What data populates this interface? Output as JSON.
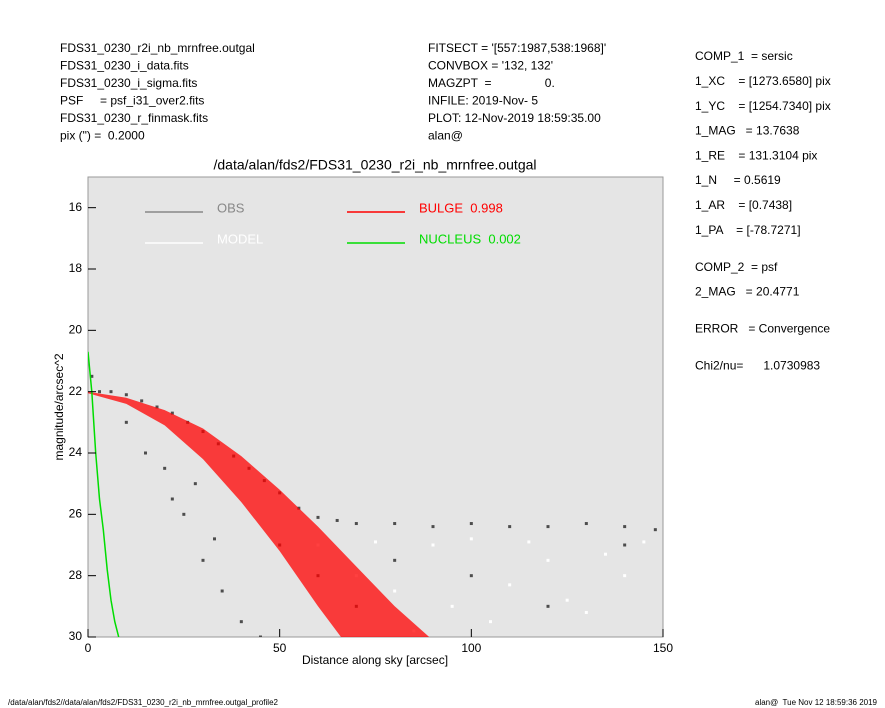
{
  "chart_data": {
    "type": "scatter",
    "title": "/data/alan/fds2/FDS31_0230_r2i_nb_mrnfree.outgal",
    "x_label": "Distance along sky [arcsec]",
    "y_label": "magnitude/arcsec^2",
    "header_left": [
      "FDS31_0230_r2i_nb_mrnfree.outgal",
      "FDS31_0230_i_data.fits",
      "FDS31_0230_i_sigma.fits",
      "PSF     = psf_i31_over2.fits",
      "FDS31_0230_r_finmask.fits",
      "pix (\") =  0.2000"
    ],
    "header_middle": [
      "FITSECT = '[557:1987,538:1968]'",
      "CONVBOX = '132, 132'",
      "MAGZPT  =                0.",
      "INFILE: 2019-Nov- 5",
      "PLOT: 12-Nov-2019 18:59:35.00",
      "alan@"
    ],
    "parameters": [
      "COMP_1  = sersic",
      "1_XC    = [1273.6580] pix",
      "1_YC    = [1254.7340] pix",
      "1_MAG   = 13.7638",
      "1_RE    = 131.3104 pix",
      "1_N     = 0.5619",
      "1_AR    = [0.7438]",
      "1_PA    = [-78.7271]",
      "COMP_2  = psf",
      "2_MAG   = 20.4771",
      "ERROR   = Convergence",
      "Chi2/nu=      1.0730983"
    ],
    "footer_left": "/data/alan/fds2//data/alan/fds2/FDS31_0230_r2i_nb_mrnfree.outgal_profile2",
    "footer_right": "alan@  Tue Nov 12 18:59:36 2019",
    "xlim": [
      0,
      150
    ],
    "xticks": [
      0,
      50,
      100,
      150
    ],
    "ylim": [
      30,
      15
    ],
    "yticks": [
      16,
      18,
      20,
      22,
      24,
      26,
      28,
      30
    ],
    "series": [
      {
        "name": "OBS",
        "color": "#4d4d4d",
        "kind": "points",
        "x": [
          1,
          3,
          6,
          10,
          14,
          18,
          22,
          26,
          30,
          34,
          38,
          42,
          46,
          50,
          55,
          60,
          65,
          70,
          80,
          90,
          100,
          110,
          120,
          130,
          140,
          148,
          10,
          15,
          20,
          25,
          30,
          35,
          40,
          45,
          28,
          22,
          33,
          50,
          60,
          70,
          80,
          100,
          120,
          140
        ],
        "values": [
          21.5,
          22,
          22,
          22.1,
          22.3,
          22.5,
          22.7,
          23,
          23.3,
          23.7,
          24.1,
          24.5,
          24.9,
          25.3,
          25.8,
          26.1,
          26.2,
          26.3,
          26.3,
          26.4,
          26.3,
          26.4,
          26.4,
          26.3,
          26.4,
          26.5,
          23,
          24,
          24.5,
          26,
          27.5,
          28.5,
          29.5,
          30,
          25,
          25.5,
          26.8,
          27,
          28,
          29,
          27.5,
          28,
          29,
          27
        ]
      },
      {
        "name": "MODEL",
        "color": "#ffffff",
        "kind": "points",
        "x": [
          60,
          70,
          80,
          90,
          95,
          100,
          110,
          120,
          130,
          140,
          145,
          105,
          85,
          115,
          125,
          135,
          75
        ],
        "values": [
          27,
          28,
          28.5,
          27,
          29,
          26.8,
          28.3,
          27.5,
          29.2,
          28,
          26.9,
          29.5,
          29.8,
          26.9,
          28.8,
          27.3,
          26.9
        ]
      },
      {
        "name": "BULGE  0.998",
        "color": "#ff0000",
        "kind": "band",
        "x": [
          0,
          10,
          20,
          30,
          40,
          50,
          60,
          70,
          80,
          89
        ],
        "values": [
          22.0,
          22.2,
          22.6,
          23.2,
          24.1,
          25.2,
          26.4,
          27.7,
          29.0,
          30.0
        ],
        "x_lower": [
          0,
          10,
          20,
          30,
          40,
          50,
          60,
          66
        ],
        "values_lower": [
          22.05,
          22.4,
          23.1,
          24.2,
          25.6,
          27.2,
          29.0,
          30.0
        ]
      },
      {
        "name": "NUCLEUS  0.002",
        "color": "#00dd00",
        "kind": "line",
        "x": [
          0,
          1,
          2,
          3,
          4,
          5,
          6,
          7,
          8
        ],
        "values": [
          20.7,
          22,
          24,
          25.5,
          26.5,
          27.8,
          28.8,
          29.5,
          30
        ]
      }
    ]
  }
}
